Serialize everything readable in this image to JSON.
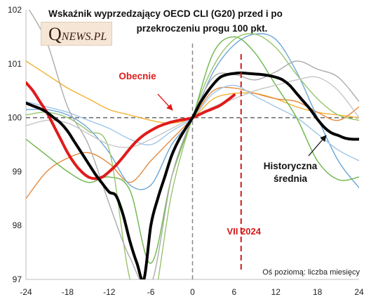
{
  "chart_data": {
    "type": "line",
    "title_lines": [
      "Wskaźnik wyprzedzający OECD CLI (G20) przed i po",
      "przekroczeniu progu 100 pkt."
    ],
    "xlim": [
      -24,
      24
    ],
    "ylim": [
      97,
      102
    ],
    "x_ticks": [
      "-24",
      "-18",
      "-12",
      "-6",
      "0",
      "6",
      "12",
      "18",
      "24"
    ],
    "y_ticks": [
      "97",
      "98",
      "99",
      "100",
      "101",
      "102"
    ],
    "axis_note": "Oś poziomą: liczba miesięcy",
    "reference_lines": {
      "x": 0,
      "y": 100
    },
    "marker": {
      "x": 7,
      "label": "VII 2024",
      "color": "#d11a1a"
    },
    "annotations": [
      {
        "text": "Obecnie",
        "color": "#e01b1b"
      },
      {
        "text_lines": [
          "Historyczna",
          "średnia"
        ],
        "color": "#111111"
      }
    ],
    "series": [
      {
        "role": "episode",
        "color": "#f2b233",
        "x": [
          -24,
          -21,
          -18,
          -15,
          -12,
          -9,
          -6,
          -3,
          0,
          3,
          6,
          9,
          12,
          15,
          18,
          21,
          24
        ],
        "y": [
          101.05,
          100.8,
          100.55,
          100.35,
          100.15,
          100.05,
          99.95,
          99.9,
          100.0,
          100.35,
          100.45,
          100.45,
          100.35,
          100.2,
          100.1,
          100.05,
          100.0
        ]
      },
      {
        "role": "episode",
        "color": "#e38a3d",
        "x": [
          -24,
          -21,
          -18,
          -15,
          -12,
          -9,
          -6,
          -3,
          0,
          3,
          6,
          9,
          12,
          15,
          18,
          21,
          24
        ],
        "y": [
          98.5,
          99.0,
          99.25,
          99.35,
          99.15,
          98.8,
          99.2,
          99.6,
          100.0,
          100.5,
          100.55,
          100.45,
          100.35,
          100.3,
          100.1,
          99.95,
          100.2
        ]
      },
      {
        "role": "episode",
        "color": "#6aa6d6",
        "x": [
          -24,
          -21,
          -18,
          -15,
          -12,
          -9,
          -6,
          -3,
          0,
          3,
          6,
          9,
          12,
          15,
          18,
          21,
          24
        ],
        "y": [
          100.15,
          100.15,
          100.05,
          99.8,
          99.35,
          98.75,
          98.75,
          99.5,
          100.0,
          100.85,
          101.35,
          101.55,
          101.45,
          100.85,
          100.0,
          99.2,
          98.7
        ]
      },
      {
        "role": "episode",
        "color": "#9fc5e8",
        "x": [
          -24,
          -21,
          -18,
          -15,
          -12,
          -9,
          -6,
          -3,
          0,
          3,
          6,
          9,
          12,
          15,
          18,
          21,
          24
        ],
        "y": [
          100.3,
          100.2,
          100.1,
          99.95,
          99.8,
          99.6,
          99.5,
          99.75,
          100.0,
          100.45,
          100.6,
          100.4,
          100.2,
          100.0,
          99.7,
          99.4,
          99.2
        ]
      },
      {
        "role": "episode",
        "color": "#6bb64a",
        "x": [
          -24,
          -21,
          -18,
          -15,
          -12,
          -9,
          -6,
          -3,
          0,
          3,
          6,
          9,
          12,
          15,
          18,
          21,
          24
        ],
        "y": [
          99.6,
          99.3,
          99.0,
          98.8,
          98.9,
          98.65,
          97.3,
          98.9,
          100.0,
          101.2,
          101.5,
          101.2,
          100.6,
          100.0,
          99.2,
          98.85,
          98.9
        ]
      },
      {
        "role": "episode",
        "color": "#98c46b",
        "x": [
          -24,
          -21,
          -18,
          -15,
          -12,
          -9,
          -6,
          -3,
          0,
          3,
          6,
          9,
          12,
          15,
          18,
          21,
          24
        ],
        "y": [
          100.05,
          100.1,
          100.0,
          99.75,
          99.4,
          97.0,
          96.4,
          98.6,
          100.0,
          100.95,
          101.45,
          101.55,
          101.3,
          100.8,
          100.35,
          100.05,
          99.95
        ]
      },
      {
        "role": "episode",
        "color": "#ababab",
        "x": [
          -24,
          -21,
          -18,
          -15,
          -12,
          -9,
          -6,
          -3,
          0,
          3,
          6,
          9,
          12,
          15,
          18,
          21,
          24
        ],
        "y": [
          102.1,
          101.4,
          100.2,
          99.5,
          98.4,
          97.4,
          96.9,
          98.9,
          100.0,
          100.75,
          100.8,
          100.7,
          100.85,
          101.05,
          100.9,
          100.75,
          100.3
        ]
      },
      {
        "role": "episode",
        "color": "#c6c6c6",
        "x": [
          -24,
          -21,
          -18,
          -15,
          -12,
          -9,
          -6,
          -3,
          0,
          3,
          6,
          9,
          12,
          15,
          18,
          21,
          24
        ],
        "y": [
          99.85,
          99.95,
          99.9,
          99.7,
          99.5,
          99.45,
          99.6,
          99.8,
          100.0,
          100.2,
          100.35,
          100.5,
          100.6,
          100.7,
          100.75,
          100.5,
          100.0
        ]
      },
      {
        "name": "Obecnie",
        "role": "current",
        "color": "#e01b1b",
        "x": [
          -24,
          -23,
          -22,
          -21,
          -20,
          -19,
          -18,
          -17,
          -16,
          -15,
          -14,
          -13,
          -12,
          -11,
          -10,
          -9,
          -8,
          -7,
          -6,
          -5,
          -4,
          -3,
          -2,
          -1,
          0,
          1,
          2,
          3,
          4,
          5,
          6
        ],
        "y": [
          100.65,
          100.5,
          100.3,
          100.1,
          99.85,
          99.6,
          99.35,
          99.15,
          99.0,
          98.9,
          98.87,
          98.9,
          99.0,
          99.12,
          99.27,
          99.43,
          99.57,
          99.68,
          99.76,
          99.83,
          99.88,
          99.92,
          99.95,
          99.97,
          100.0,
          100.06,
          100.12,
          100.17,
          100.23,
          100.32,
          100.42
        ]
      },
      {
        "name": "Historyczna średnia",
        "role": "average",
        "color": "#000000",
        "x": [
          -24,
          -23,
          -22,
          -21,
          -20,
          -19,
          -18,
          -17,
          -16,
          -15,
          -14,
          -13,
          -12,
          -11,
          -10,
          -9,
          -8,
          -7,
          -6,
          -5,
          -4,
          -3,
          -2,
          -1,
          0,
          1,
          2,
          3,
          4,
          5,
          6,
          7,
          8,
          9,
          10,
          11,
          12,
          13,
          14,
          15,
          16,
          17,
          18,
          19,
          20,
          21,
          22,
          23,
          24
        ],
        "y": [
          100.27,
          100.22,
          100.17,
          100.1,
          100.0,
          99.9,
          99.75,
          99.55,
          99.35,
          99.15,
          98.95,
          98.78,
          98.62,
          98.55,
          98.2,
          97.7,
          97.3,
          97.0,
          98.0,
          98.5,
          98.9,
          99.3,
          99.58,
          99.8,
          100.0,
          100.25,
          100.45,
          100.62,
          100.75,
          100.8,
          100.82,
          100.83,
          100.82,
          100.81,
          100.8,
          100.78,
          100.75,
          100.7,
          100.6,
          100.45,
          100.3,
          100.15,
          99.97,
          99.82,
          99.72,
          99.67,
          99.62,
          99.6,
          99.6
        ]
      }
    ]
  }
}
